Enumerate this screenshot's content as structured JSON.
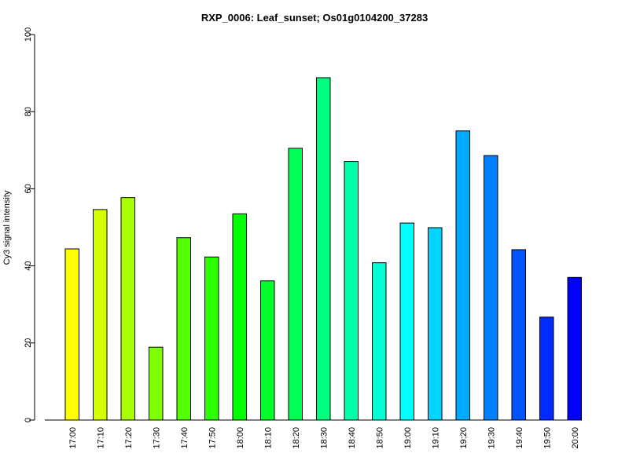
{
  "chart_data": {
    "type": "bar",
    "title": "RXP_0006: Leaf_sunset; Os01g0104200_37283",
    "xlabel": "",
    "ylabel": "Cy3 signal intensity",
    "ylim": [
      0,
      100
    ],
    "yticks": [
      0,
      20,
      40,
      60,
      80,
      100
    ],
    "grid": false,
    "categories": [
      "17:00",
      "17:10",
      "17:20",
      "17:30",
      "17:40",
      "17:50",
      "18:00",
      "18:10",
      "18:20",
      "18:30",
      "18:40",
      "18:50",
      "19:00",
      "19:10",
      "19:20",
      "19:30",
      "19:40",
      "19:50",
      "20:00"
    ],
    "values": [
      44.4,
      54.6,
      57.7,
      18.9,
      47.3,
      42.3,
      53.5,
      36.1,
      70.5,
      88.8,
      67.1,
      40.8,
      51.1,
      49.9,
      75.0,
      68.6,
      44.2,
      26.7,
      37.0
    ],
    "colors": [
      "#FFFF00",
      "#D4FF00",
      "#AAFF00",
      "#80FF00",
      "#55FF00",
      "#2BFF00",
      "#00FF00",
      "#00FF2B",
      "#00FF55",
      "#00FF80",
      "#00FFAA",
      "#00FFD4",
      "#00FFFF",
      "#00D4FF",
      "#00AAFF",
      "#0080FF",
      "#0055FF",
      "#002BFF",
      "#0000FF"
    ]
  }
}
